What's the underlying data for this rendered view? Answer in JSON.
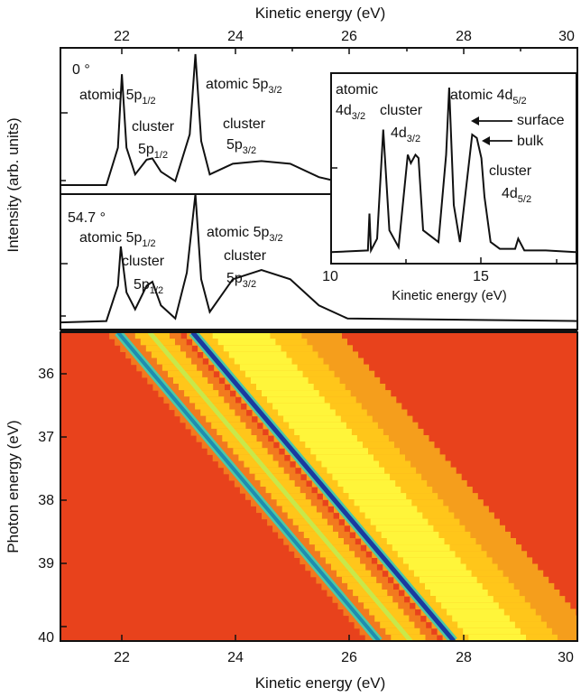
{
  "chart_data": [
    {
      "type": "line",
      "panel": "top spectrum",
      "annotation_angle": "0 °",
      "x_axis_top_label": "Kinetic energy (eV)",
      "x_ticks_top": [
        22,
        24,
        26,
        28,
        30
      ],
      "xlim": [
        21,
        30
      ],
      "ylabel": "Intensity (arb. units)",
      "series": [
        {
          "x": [
            21.0,
            21.8,
            22.0,
            22.07,
            22.15,
            22.3,
            22.5,
            22.6,
            22.75,
            23.0,
            23.25,
            23.35,
            23.45,
            23.6,
            24.0,
            24.5,
            25.0,
            25.5,
            25.8
          ],
          "y": [
            0.02,
            0.02,
            0.3,
            0.85,
            0.3,
            0.1,
            0.21,
            0.22,
            0.12,
            0.05,
            0.4,
            1.0,
            0.35,
            0.1,
            0.18,
            0.2,
            0.18,
            0.08,
            0.05
          ]
        }
      ],
      "labels": {
        "atomic_5p12": {
          "main": "atomic 5p",
          "sub": "1/2"
        },
        "cluster_5p12": {
          "line1": "cluster",
          "main": "5p",
          "sub": "1/2"
        },
        "atomic_5p32": {
          "main": "atomic 5p",
          "sub": "3/2"
        },
        "cluster_5p32": {
          "line1": "cluster",
          "main": "5p",
          "sub": "3/2"
        }
      }
    },
    {
      "type": "line",
      "panel": "middle spectrum",
      "annotation_angle": "54.7 °",
      "xlim": [
        21,
        30
      ],
      "series": [
        {
          "x": [
            21.0,
            21.8,
            22.0,
            22.05,
            22.15,
            22.3,
            22.5,
            22.6,
            22.75,
            23.0,
            23.2,
            23.35,
            23.45,
            23.6,
            24.0,
            24.5,
            25.0,
            25.5,
            26.0,
            30.0
          ],
          "y": [
            0.02,
            0.03,
            0.3,
            0.6,
            0.25,
            0.12,
            0.3,
            0.33,
            0.15,
            0.05,
            0.4,
            1.0,
            0.35,
            0.1,
            0.35,
            0.42,
            0.35,
            0.15,
            0.05,
            0.03
          ]
        }
      ],
      "labels": {
        "atomic_5p12": {
          "main": "atomic 5p",
          "sub": "1/2"
        },
        "cluster_5p12": {
          "line1": "cluster",
          "main": "5p",
          "sub": "1/2"
        },
        "atomic_5p32": {
          "main": "atomic 5p",
          "sub": "3/2"
        },
        "cluster_5p32": {
          "line1": "cluster",
          "main": "5p",
          "sub": "3/2"
        }
      }
    },
    {
      "type": "line",
      "panel": "inset",
      "xlabel": "Kinetic energy (eV)",
      "x_ticks": [
        10,
        15
      ],
      "xlim": [
        10,
        18
      ],
      "series": [
        {
          "x": [
            10,
            11.2,
            11.25,
            11.3,
            11.5,
            11.7,
            11.9,
            12.2,
            12.5,
            12.6,
            12.75,
            12.85,
            13.0,
            13.5,
            13.75,
            13.85,
            14.0,
            14.2,
            14.6,
            14.75,
            14.9,
            15.0,
            15.2,
            15.5,
            16.0,
            16.1,
            16.3,
            17.0,
            18.0
          ],
          "y": [
            0.02,
            0.03,
            0.25,
            0.03,
            0.1,
            0.75,
            0.15,
            0.05,
            0.6,
            0.55,
            0.6,
            0.58,
            0.15,
            0.08,
            0.6,
            1.0,
            0.3,
            0.08,
            0.72,
            0.7,
            0.58,
            0.35,
            0.08,
            0.04,
            0.04,
            0.1,
            0.03,
            0.03,
            0.02
          ]
        }
      ],
      "labels": {
        "atomic_4d32": {
          "line1": "atomic",
          "main": "4d",
          "sub": "3/2"
        },
        "cluster_4d32": {
          "line1": "cluster",
          "main": "4d",
          "sub": "3/2"
        },
        "atomic_4d52": {
          "main": "atomic 4d",
          "sub": "5/2"
        },
        "surface": "surface",
        "bulk": "bulk",
        "cluster_4d52": {
          "line1": "cluster",
          "main": "4d",
          "sub": "5/2"
        }
      }
    },
    {
      "type": "heatmap",
      "panel": "bottom map",
      "xlabel": "Kinetic energy (eV)",
      "ylabel": "Photon energy (eV)",
      "xlim": [
        21,
        30
      ],
      "ylim": [
        35.35,
        40.05
      ],
      "x_ticks": [
        22,
        24,
        26,
        28,
        30
      ],
      "y_ticks": [
        36,
        37,
        38,
        39,
        40
      ],
      "colors": {
        "background": "#e8421c",
        "mid": "#ffc61a",
        "peak": "#fff53a",
        "line_core": "#1f8cb0",
        "line_edge": "#4cc8a8",
        "atomic32_core": "#1a3aa0"
      },
      "lines": [
        {
          "name": "atomic 5p1/2",
          "at_hv_35_35": 22.0,
          "at_hv_40": 26.5
        },
        {
          "name": "cluster 5p1/2",
          "at_hv_35_35": 22.55,
          "at_hv_40": 27.05
        },
        {
          "name": "atomic 5p3/2",
          "at_hv_35_35": 23.3,
          "at_hv_40": 27.8
        },
        {
          "name": "cluster 5p3/2",
          "at_hv_35_35": 24.3,
          "at_hv_40": 28.8
        }
      ]
    }
  ]
}
